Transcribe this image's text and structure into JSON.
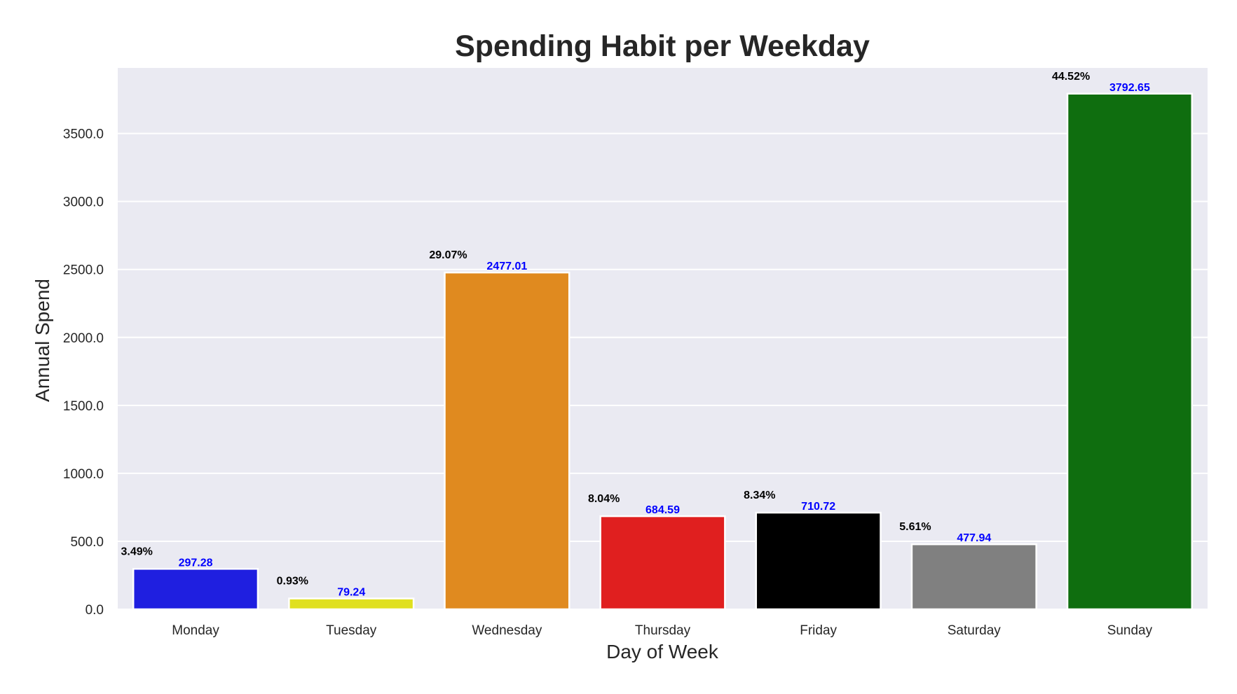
{
  "chart_data": {
    "type": "bar",
    "title": "Spending Habit per Weekday",
    "xlabel": "Day of Week",
    "ylabel": "Annual Spend",
    "categories": [
      "Monday",
      "Tuesday",
      "Wednesday",
      "Thursday",
      "Friday",
      "Saturday",
      "Sunday"
    ],
    "values": [
      297.28,
      79.24,
      2477.01,
      684.59,
      710.72,
      477.94,
      3792.65
    ],
    "value_labels": [
      "297.28",
      "79.24",
      "2477.01",
      "684.59",
      "710.72",
      "477.94",
      "3792.65"
    ],
    "percent_labels": [
      "3.49%",
      "0.93%",
      "29.07%",
      "8.04%",
      "8.34%",
      "5.61%",
      "44.52%"
    ],
    "colors": [
      "#1f1fe0",
      "#e0e01f",
      "#e08a1f",
      "#e01f1f",
      "#000000",
      "#808080",
      "#0f6e0f"
    ],
    "yticks": [
      0,
      500,
      1000,
      1500,
      2000,
      2500,
      3000,
      3500
    ],
    "ytick_labels": [
      "0.0",
      "500.0",
      "1000.0",
      "1500.0",
      "2000.0",
      "2500.0",
      "3000.0",
      "3500.0"
    ],
    "ylim": [
      0,
      3982
    ],
    "grid": true,
    "plot_background": "#eaeaf2",
    "grid_color": "#ffffff",
    "value_label_color": "#0000ff",
    "percent_label_color": "#000000"
  }
}
